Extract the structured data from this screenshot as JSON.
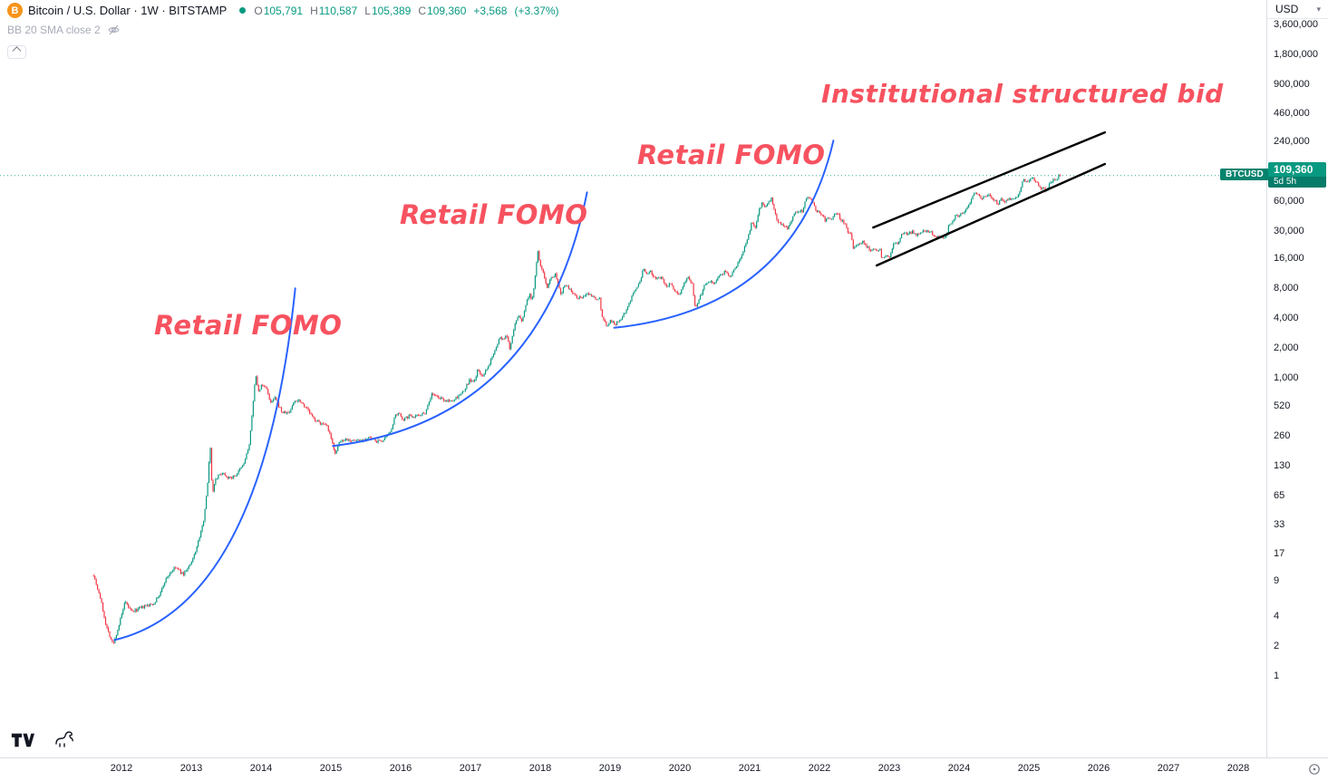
{
  "header": {
    "symbol_title": "Bitcoin / U.S. Dollar · 1W · BITSTAMP",
    "ohlc": {
      "o_label": "O",
      "o_value": "105,791",
      "h_label": "H",
      "h_value": "110,587",
      "l_label": "L",
      "l_value": "105,389",
      "c_label": "C",
      "c_value": "109,360",
      "change": "+3,568",
      "change_pct": "(+3.37%)"
    },
    "indicator_label": "BB 20 SMA close 2"
  },
  "annotations": {
    "fomo_1": "Retail FOMO",
    "fomo_2": "Retail FOMO",
    "fomo_3": "Retail FOMO",
    "institutional": "Institutional structured bid"
  },
  "price_axis": {
    "currency": "USD",
    "labels": [
      "3,600,000",
      "1,800,000",
      "900,000",
      "460,000",
      "240,000",
      "60,000",
      "30,000",
      "16,000",
      "8,000",
      "4,000",
      "2,000",
      "1,000",
      "520",
      "260",
      "130",
      "65",
      "33",
      "17",
      "9",
      "4",
      "2",
      "1"
    ],
    "badge": {
      "symbol": "BTCUSD",
      "price": "109,360",
      "countdown": "5d 5h"
    }
  },
  "time_axis": {
    "years": [
      "2012",
      "2013",
      "2014",
      "2015",
      "2016",
      "2017",
      "2018",
      "2019",
      "2020",
      "2021",
      "2022",
      "2023",
      "2024",
      "2025",
      "2026",
      "2027",
      "2028"
    ]
  },
  "colors": {
    "up": "#089981",
    "down": "#f23645",
    "trend_curve": "#2962ff",
    "annotation_text": "#f7525f",
    "channel": "#000000",
    "price_line": "#089981",
    "badge_bg": "#089981",
    "badge_tag_bg": "#05836d",
    "bitcoin_orange": "#f7931a"
  },
  "chart_data": {
    "type": "candlestick",
    "title": "Bitcoin / U.S. Dollar",
    "ticker": "BTCUSD",
    "exchange": "BITSTAMP",
    "interval": "1W",
    "price_scale": "log",
    "x_range_years": [
      2011.3,
      2028.8
    ],
    "current_price": 109360,
    "price_points": [
      [
        2011.6,
        10.5
      ],
      [
        2011.7,
        6
      ],
      [
        2011.78,
        3.2
      ],
      [
        2011.88,
        2.05
      ],
      [
        2011.95,
        3
      ],
      [
        2012.05,
        5.5
      ],
      [
        2012.15,
        4.4
      ],
      [
        2012.3,
        4.9
      ],
      [
        2012.45,
        5.3
      ],
      [
        2012.55,
        6.6
      ],
      [
        2012.62,
        9
      ],
      [
        2012.7,
        11
      ],
      [
        2012.78,
        12.4
      ],
      [
        2012.88,
        10.5
      ],
      [
        2013.0,
        13.5
      ],
      [
        2013.08,
        20
      ],
      [
        2013.17,
        34
      ],
      [
        2013.24,
        93
      ],
      [
        2013.27,
        230
      ],
      [
        2013.3,
        68
      ],
      [
        2013.35,
        98
      ],
      [
        2013.45,
        112
      ],
      [
        2013.55,
        97
      ],
      [
        2013.65,
        107
      ],
      [
        2013.75,
        135
      ],
      [
        2013.83,
        210
      ],
      [
        2013.88,
        480
      ],
      [
        2013.92,
        1150
      ],
      [
        2013.96,
        700
      ],
      [
        2014.0,
        840
      ],
      [
        2014.08,
        800
      ],
      [
        2014.13,
        550
      ],
      [
        2014.2,
        630
      ],
      [
        2014.3,
        450
      ],
      [
        2014.4,
        445
      ],
      [
        2014.48,
        590
      ],
      [
        2014.55,
        600
      ],
      [
        2014.65,
        500
      ],
      [
        2014.75,
        390
      ],
      [
        2014.85,
        350
      ],
      [
        2014.95,
        320
      ],
      [
        2015.03,
        210
      ],
      [
        2015.07,
        170
      ],
      [
        2015.12,
        225
      ],
      [
        2015.2,
        245
      ],
      [
        2015.3,
        235
      ],
      [
        2015.45,
        237
      ],
      [
        2015.55,
        250
      ],
      [
        2015.65,
        230
      ],
      [
        2015.75,
        235
      ],
      [
        2015.83,
        270
      ],
      [
        2015.88,
        330
      ],
      [
        2015.92,
        410
      ],
      [
        2015.97,
        435
      ],
      [
        2016.05,
        380
      ],
      [
        2016.12,
        415
      ],
      [
        2016.25,
        420
      ],
      [
        2016.35,
        450
      ],
      [
        2016.45,
        700
      ],
      [
        2016.5,
        655
      ],
      [
        2016.6,
        610
      ],
      [
        2016.7,
        575
      ],
      [
        2016.8,
        630
      ],
      [
        2016.9,
        730
      ],
      [
        2016.99,
        960
      ],
      [
        2017.05,
        890
      ],
      [
        2017.1,
        1180
      ],
      [
        2017.17,
        1050
      ],
      [
        2017.25,
        1250
      ],
      [
        2017.33,
        1800
      ],
      [
        2017.42,
        2550
      ],
      [
        2017.48,
        2450
      ],
      [
        2017.52,
        2650
      ],
      [
        2017.56,
        1950
      ],
      [
        2017.63,
        3400
      ],
      [
        2017.7,
        4300
      ],
      [
        2017.73,
        3600
      ],
      [
        2017.8,
        5700
      ],
      [
        2017.85,
        7200
      ],
      [
        2017.88,
        5800
      ],
      [
        2017.93,
        11000
      ],
      [
        2017.96,
        19200
      ],
      [
        2018.0,
        13500
      ],
      [
        2018.05,
        11000
      ],
      [
        2018.1,
        8200
      ],
      [
        2018.15,
        10200
      ],
      [
        2018.22,
        11200
      ],
      [
        2018.3,
        6900
      ],
      [
        2018.35,
        8900
      ],
      [
        2018.45,
        7500
      ],
      [
        2018.52,
        6300
      ],
      [
        2018.6,
        6500
      ],
      [
        2018.7,
        7100
      ],
      [
        2018.78,
        6400
      ],
      [
        2018.85,
        6400
      ],
      [
        2018.88,
        4300
      ],
      [
        2018.95,
        3300
      ],
      [
        2019.0,
        3800
      ],
      [
        2019.08,
        3500
      ],
      [
        2019.15,
        3900
      ],
      [
        2019.25,
        5100
      ],
      [
        2019.33,
        7200
      ],
      [
        2019.42,
        8800
      ],
      [
        2019.48,
        12800
      ],
      [
        2019.52,
        10800
      ],
      [
        2019.58,
        11800
      ],
      [
        2019.65,
        9800
      ],
      [
        2019.73,
        10300
      ],
      [
        2019.8,
        8200
      ],
      [
        2019.88,
        9200
      ],
      [
        2019.92,
        7300
      ],
      [
        2020.0,
        7200
      ],
      [
        2020.07,
        9400
      ],
      [
        2020.13,
        10300
      ],
      [
        2020.18,
        8800
      ],
      [
        2020.22,
        4950
      ],
      [
        2020.3,
        6800
      ],
      [
        2020.35,
        8800
      ],
      [
        2020.42,
        9600
      ],
      [
        2020.5,
        9100
      ],
      [
        2020.58,
        11000
      ],
      [
        2020.65,
        11700
      ],
      [
        2020.72,
        10500
      ],
      [
        2020.8,
        13000
      ],
      [
        2020.85,
        15500
      ],
      [
        2020.9,
        18500
      ],
      [
        2020.95,
        23000
      ],
      [
        2021.0,
        29000
      ],
      [
        2021.03,
        38000
      ],
      [
        2021.08,
        32000
      ],
      [
        2021.13,
        48000
      ],
      [
        2021.18,
        57000
      ],
      [
        2021.22,
        54000
      ],
      [
        2021.28,
        59000
      ],
      [
        2021.31,
        64800
      ],
      [
        2021.35,
        50000
      ],
      [
        2021.4,
        37000
      ],
      [
        2021.45,
        35500
      ],
      [
        2021.5,
        33500
      ],
      [
        2021.55,
        31800
      ],
      [
        2021.6,
        39500
      ],
      [
        2021.65,
        47500
      ],
      [
        2021.7,
        48800
      ],
      [
        2021.75,
        47000
      ],
      [
        2021.8,
        61500
      ],
      [
        2021.84,
        67000
      ],
      [
        2021.87,
        65000
      ],
      [
        2021.92,
        57000
      ],
      [
        2021.96,
        46500
      ],
      [
        2022.0,
        47500
      ],
      [
        2022.05,
        43000
      ],
      [
        2022.08,
        38500
      ],
      [
        2022.13,
        42500
      ],
      [
        2022.17,
        39000
      ],
      [
        2022.22,
        44500
      ],
      [
        2022.26,
        46500
      ],
      [
        2022.3,
        40000
      ],
      [
        2022.36,
        36000
      ],
      [
        2022.4,
        30000
      ],
      [
        2022.45,
        29500
      ],
      [
        2022.48,
        19500
      ],
      [
        2022.53,
        21500
      ],
      [
        2022.58,
        23000
      ],
      [
        2022.63,
        24000
      ],
      [
        2022.67,
        21500
      ],
      [
        2022.72,
        19500
      ],
      [
        2022.78,
        20000
      ],
      [
        2022.83,
        19000
      ],
      [
        2022.86,
        20500
      ],
      [
        2022.89,
        16500
      ],
      [
        2022.93,
        16200
      ],
      [
        2022.97,
        16800
      ],
      [
        2023.0,
        16600
      ],
      [
        2023.05,
        21000
      ],
      [
        2023.08,
        23000
      ],
      [
        2023.13,
        22300
      ],
      [
        2023.18,
        28000
      ],
      [
        2023.28,
        28500
      ],
      [
        2023.33,
        29500
      ],
      [
        2023.38,
        27000
      ],
      [
        2023.48,
        30500
      ],
      [
        2023.58,
        29900
      ],
      [
        2023.68,
        26000
      ],
      [
        2023.78,
        26200
      ],
      [
        2023.82,
        27500
      ],
      [
        2023.85,
        34500
      ],
      [
        2023.9,
        37000
      ],
      [
        2023.95,
        43800
      ],
      [
        2024.0,
        42300
      ],
      [
        2024.08,
        48000
      ],
      [
        2024.13,
        52000
      ],
      [
        2024.17,
        62000
      ],
      [
        2024.23,
        73500
      ],
      [
        2024.27,
        69500
      ],
      [
        2024.32,
        64000
      ],
      [
        2024.42,
        69000
      ],
      [
        2024.52,
        61000
      ],
      [
        2024.55,
        55000
      ],
      [
        2024.6,
        64500
      ],
      [
        2024.63,
        58500
      ],
      [
        2024.72,
        63000
      ],
      [
        2024.77,
        65500
      ],
      [
        2024.8,
        62000
      ],
      [
        2024.83,
        68000
      ],
      [
        2024.87,
        76000
      ],
      [
        2024.9,
        91000
      ],
      [
        2024.93,
        98000
      ],
      [
        2024.96,
        95500
      ],
      [
        2025.0,
        94000
      ],
      [
        2025.03,
        104500
      ],
      [
        2025.09,
        96500
      ],
      [
        2025.16,
        84000
      ],
      [
        2025.24,
        77000
      ],
      [
        2025.32,
        94500
      ],
      [
        2025.4,
        104000
      ],
      [
        2025.46,
        109360
      ]
    ],
    "trend_curves": [
      {
        "name": "retail-fomo-curve-1",
        "from": [
          2011.9,
          2.3
        ],
        "to": [
          2014.49,
          8000
        ]
      },
      {
        "name": "retail-fomo-curve-2",
        "from": [
          2015.03,
          207
        ],
        "to": [
          2018.67,
          74000
        ]
      },
      {
        "name": "retail-fomo-curve-3",
        "from": [
          2019.06,
          3200
        ],
        "to": [
          2022.2,
          246000
        ]
      }
    ],
    "channel": {
      "upper": {
        "from": [
          2022.77,
          32800
        ],
        "to": [
          2026.09,
          297800
        ]
      },
      "lower": {
        "from": [
          2022.82,
          13580
        ],
        "to": [
          2026.09,
          142900
        ]
      }
    }
  }
}
